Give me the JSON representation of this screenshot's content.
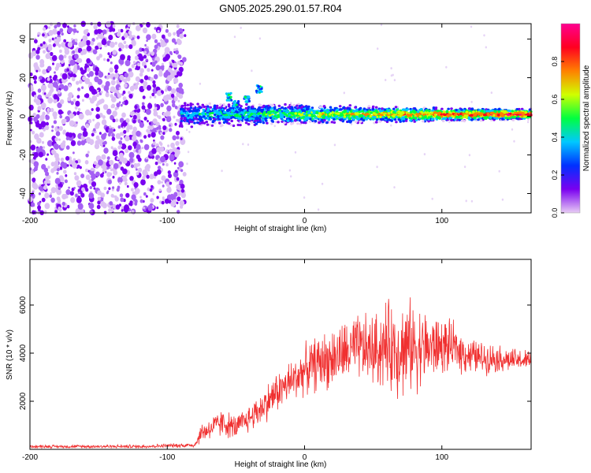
{
  "title": "GN05.2025.290.01.57.R04",
  "chart_data": [
    {
      "type": "heatmap",
      "name": "spectrogram",
      "xlabel": "Height of straight line (km)",
      "ylabel": "Frequency (Hz)",
      "xlim": [
        -200,
        165
      ],
      "ylim": [
        -50,
        48
      ],
      "xticks": [
        -200,
        -100,
        0,
        100
      ],
      "yticks": [
        -40,
        -20,
        0,
        20,
        40
      ],
      "xtick_labels": [
        "-200",
        "-100",
        "0",
        "100"
      ],
      "ytick_labels": [
        "-40",
        "-20",
        "0",
        "20",
        "40"
      ],
      "noise_region_x": [
        -200,
        -87
      ],
      "signal_onset_km": -90,
      "ridge_center_hz": 1,
      "ridge_width_hz": 3,
      "colorbar": {
        "label": "Normalized spectral amplitude",
        "range": [
          0,
          1
        ],
        "ticks": [
          0.0,
          0.2,
          0.4,
          0.6,
          0.8
        ],
        "tick_labels": [
          "0.0",
          "0.2",
          "0.4",
          "0.6",
          "0.8"
        ],
        "colors": [
          "#e8ccf4",
          "#7a00f0",
          "#0030ff",
          "#00c8ff",
          "#00ff40",
          "#d0ff00",
          "#ff8000",
          "#ff0020",
          "#ff0090"
        ]
      }
    },
    {
      "type": "line",
      "name": "snr",
      "xlabel": "Height of straight line (km)",
      "ylabel": "SNR (10 * v/v)",
      "xlim": [
        -200,
        165
      ],
      "ylim": [
        0,
        7900
      ],
      "xticks": [
        -200,
        -100,
        0,
        100
      ],
      "yticks": [
        2000,
        4000,
        6000
      ],
      "xtick_labels": [
        "-200",
        "-100",
        "0",
        "100"
      ],
      "ytick_labels": [
        "2000",
        "4000",
        "6000"
      ],
      "color": "#f03030",
      "envelope": {
        "x": [
          -200,
          -120,
          -80,
          -75,
          -60,
          -50,
          -40,
          -30,
          -20,
          -10,
          0,
          10,
          20,
          30,
          40,
          50,
          60,
          70,
          80,
          90,
          100,
          110,
          120,
          130,
          140,
          150,
          165
        ],
        "mean": [
          120,
          120,
          180,
          700,
          1100,
          900,
          1300,
          1800,
          2400,
          2800,
          3300,
          3600,
          3800,
          4000,
          4200,
          4100,
          4300,
          4200,
          4300,
          4200,
          4300,
          4200,
          3900,
          3800,
          3800,
          3700,
          3700
        ],
        "amp": [
          80,
          90,
          120,
          500,
          700,
          600,
          700,
          900,
          1000,
          1100,
          1200,
          1400,
          1500,
          1600,
          1700,
          1800,
          2200,
          2500,
          2200,
          1800,
          1400,
          1200,
          900,
          800,
          700,
          600,
          500
        ]
      }
    }
  ]
}
